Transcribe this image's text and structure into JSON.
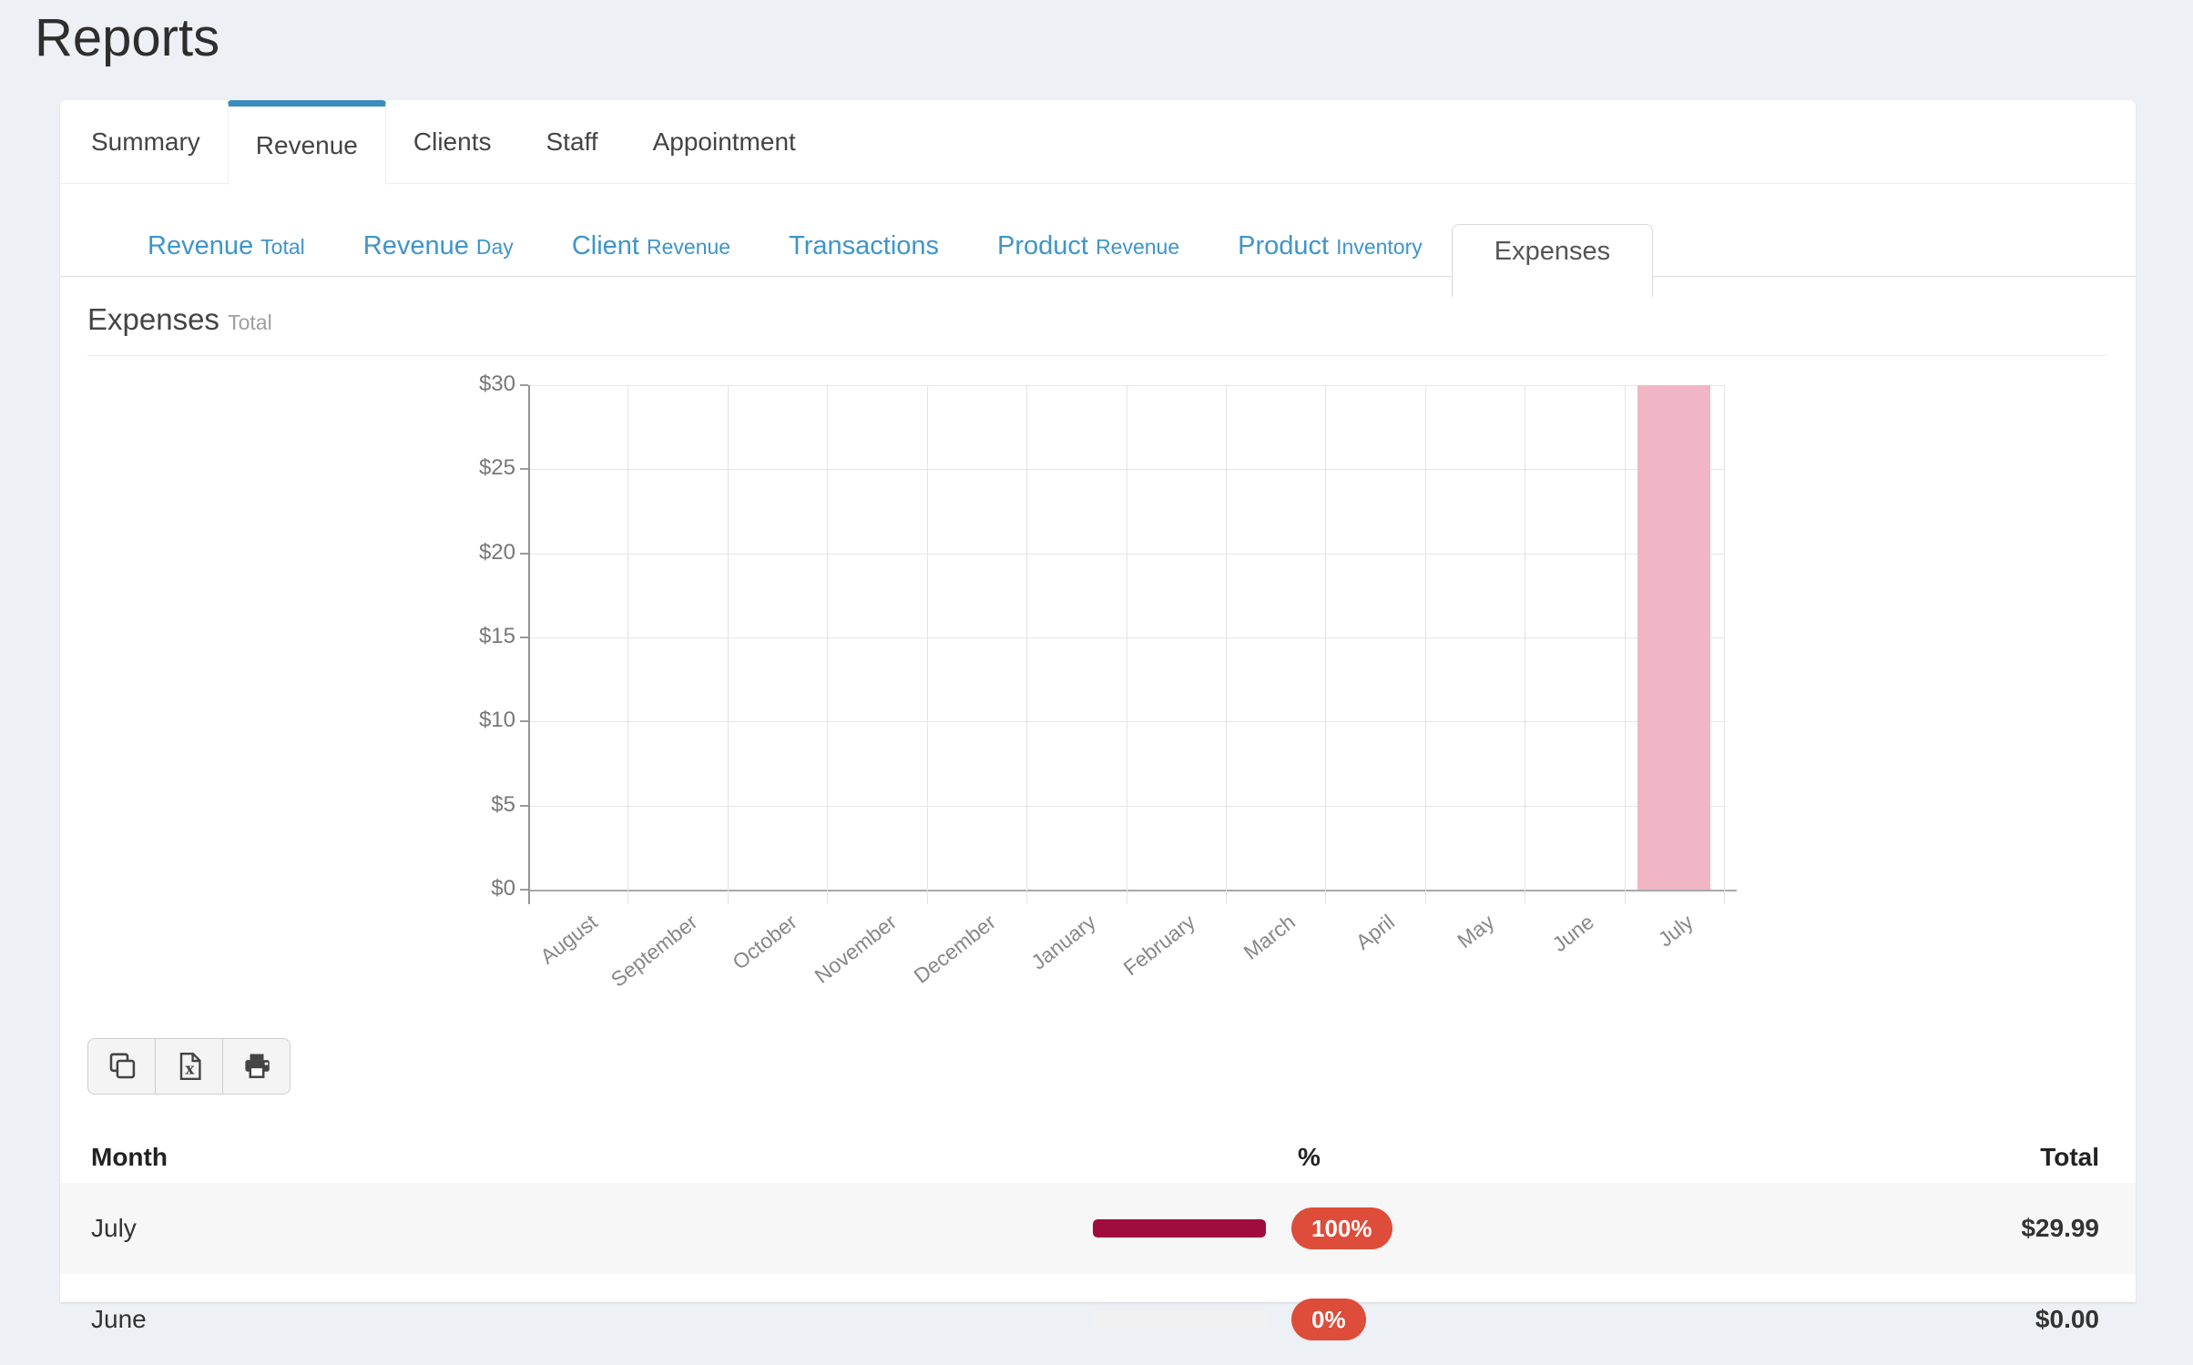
{
  "page": {
    "title": "Reports",
    "background_color": "#edf0f4",
    "accent_color": "#3c8dbc"
  },
  "tabs": {
    "active_index": 1,
    "items": [
      {
        "label": "Summary"
      },
      {
        "label": "Revenue"
      },
      {
        "label": "Clients"
      },
      {
        "label": "Staff"
      },
      {
        "label": "Appointment"
      }
    ]
  },
  "subtabs": {
    "active_index": 6,
    "link_color": "#3e95cb",
    "items": [
      {
        "label": "Revenue",
        "sub": "Total"
      },
      {
        "label": "Revenue",
        "sub": "Day"
      },
      {
        "label": "Client",
        "sub": "Revenue"
      },
      {
        "label": "Transactions",
        "sub": ""
      },
      {
        "label": "Product",
        "sub": "Revenue"
      },
      {
        "label": "Product",
        "sub": "Inventory"
      },
      {
        "label": "Expenses",
        "sub": ""
      }
    ]
  },
  "section": {
    "title": "Expenses",
    "subtitle": "Total"
  },
  "chart_data": {
    "type": "bar",
    "title": "Expenses Total by month",
    "categories": [
      "August",
      "September",
      "October",
      "November",
      "December",
      "January",
      "February",
      "March",
      "April",
      "May",
      "June",
      "July"
    ],
    "values": [
      0,
      0,
      0,
      0,
      0,
      0,
      0,
      0,
      0,
      0,
      0,
      29.99
    ],
    "y_ticks": [
      {
        "label": "$30",
        "value": 30
      },
      {
        "label": "$25",
        "value": 25
      },
      {
        "label": "$20",
        "value": 20
      },
      {
        "label": "$15",
        "value": 15
      },
      {
        "label": "$10",
        "value": 10
      },
      {
        "label": "$5",
        "value": 5
      },
      {
        "label": "$0",
        "value": 0
      }
    ],
    "ylim": [
      0,
      30
    ],
    "xlabel": "",
    "ylabel": "",
    "grid": true,
    "legend": false,
    "x_label_rotation": -38,
    "bar_color": "#f1b6c6"
  },
  "toolbar": {
    "buttons": [
      {
        "icon": "copy-icon"
      },
      {
        "icon": "excel-export-icon"
      },
      {
        "icon": "print-icon"
      }
    ]
  },
  "table": {
    "columns": [
      "Month",
      "%",
      "Total"
    ],
    "progress_fill_color": "#a10c3f",
    "badge_color": "#de4c3a",
    "rows": [
      {
        "month": "July",
        "percent_label": "100%",
        "percent_value": 100,
        "total": "$29.99"
      },
      {
        "month": "June",
        "percent_label": "0%",
        "percent_value": 0,
        "total": "$0.00"
      }
    ]
  }
}
